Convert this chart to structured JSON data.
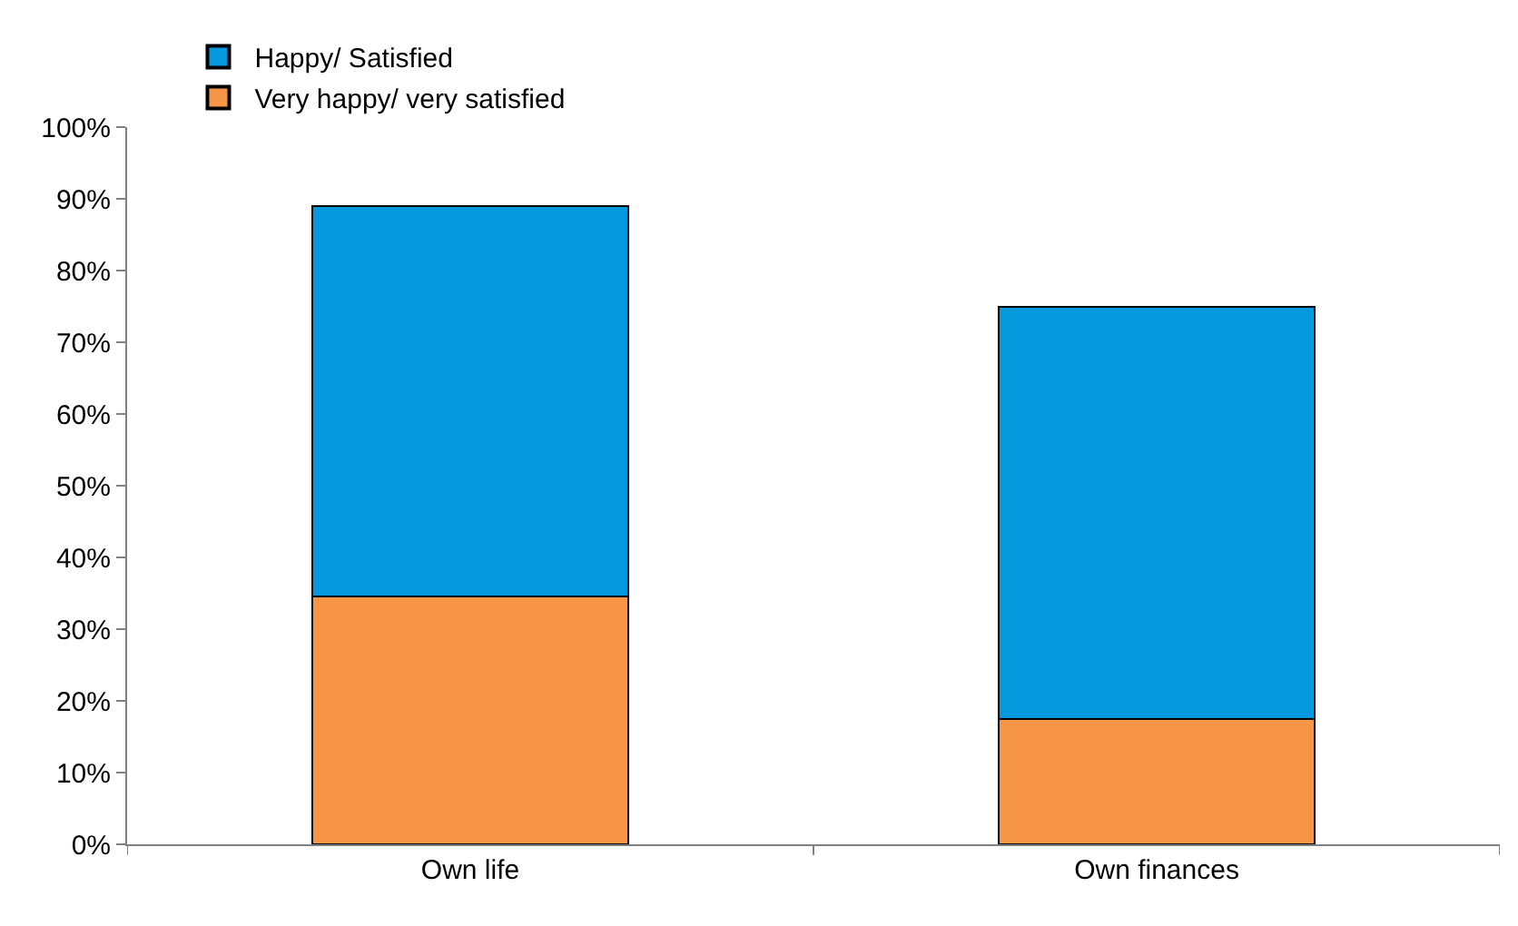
{
  "chart_data": {
    "type": "bar",
    "stacked": true,
    "categories": [
      "Own life",
      "Own finances"
    ],
    "series": [
      {
        "name": "Very happy/ very satisfied",
        "color": "#f79646",
        "values": [
          34.5,
          17.5
        ]
      },
      {
        "name": "Happy/ Satisfied",
        "color": "#0399dc",
        "values": [
          54.5,
          57.5
        ]
      }
    ],
    "ylim": [
      0,
      100
    ],
    "yticks": [
      {
        "value": 0,
        "label": "0%"
      },
      {
        "value": 10,
        "label": "10%"
      },
      {
        "value": 20,
        "label": "20%"
      },
      {
        "value": 30,
        "label": "30%"
      },
      {
        "value": 40,
        "label": "40%"
      },
      {
        "value": 50,
        "label": "50%"
      },
      {
        "value": 60,
        "label": "60%"
      },
      {
        "value": 70,
        "label": "70%"
      },
      {
        "value": 80,
        "label": "80%"
      },
      {
        "value": 90,
        "label": "90%"
      },
      {
        "value": 100,
        "label": "100%"
      }
    ],
    "legend": "top left"
  }
}
